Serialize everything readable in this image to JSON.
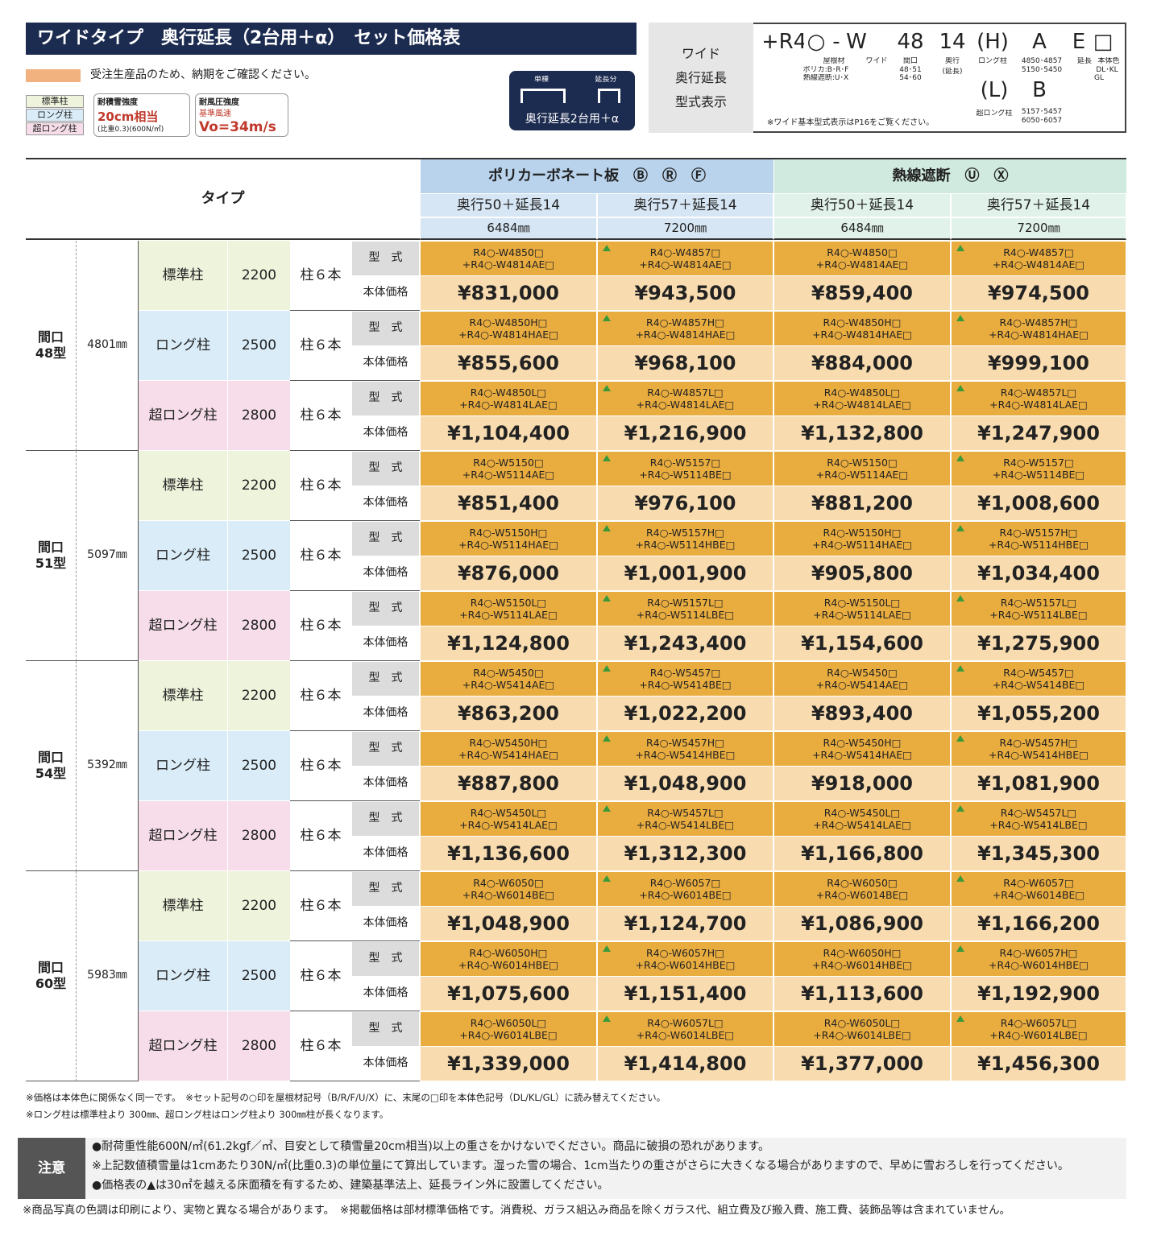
{
  "header": {
    "title": "ワイドタイプ　奥行延長（2台用＋α）　セット価格表",
    "order_note": "受注生産品のため、納期をご確認ください。",
    "legend": [
      "標準柱",
      "ロング柱",
      "超ロング柱"
    ],
    "snow": [
      "耐積雪強度",
      "20cm相当",
      "(比重0.3)(600N/㎡)"
    ],
    "wind": [
      "耐風圧強度",
      "基準風速",
      "Vo=34m/s"
    ],
    "icon": [
      "単棟",
      "延長分",
      "奥行延長2台用＋α"
    ]
  },
  "model_code": {
    "label": [
      "ワイド",
      "奥行延長",
      "型式表示"
    ],
    "big": [
      "+R4",
      "○",
      "-",
      "W",
      "48",
      "14",
      "(H)",
      "A",
      "E",
      "□",
      "(L)",
      "B"
    ],
    "small": [
      "屋根材",
      "ポリカ:B･R･F",
      "熱線遮断:U･X",
      "ワイド",
      "間口",
      "48･51",
      "54･60",
      "奥行",
      "(延長)",
      "ロング柱",
      "4850･4857",
      "5150･5450",
      "延長",
      "本体色",
      "DL･KL",
      "GL",
      "超ロング柱",
      "5157･5457",
      "6050･6057"
    ],
    "note": "※ワイド基本型式表示はP16をご覧ください。"
  },
  "table": {
    "type_header": "タイプ",
    "groups": [
      "ポリカーボネート板　Ⓑ　Ⓡ　Ⓕ",
      "熱線遮断　Ⓤ　Ⓧ"
    ],
    "columns": [
      {
        "depth": "奥行50＋延長14",
        "length": "6484㎜"
      },
      {
        "depth": "奥行57＋延長14",
        "length": "7200㎜"
      },
      {
        "depth": "奥行50＋延長14",
        "length": "6484㎜"
      },
      {
        "depth": "奥行57＋延長14",
        "length": "7200㎜"
      }
    ],
    "row_labels": [
      "型　式",
      "本体価格"
    ],
    "sections": [
      {
        "name": [
          "間口",
          "48型"
        ],
        "width": "4801㎜",
        "rows": [
          {
            "pillar": "標準柱",
            "height": "2200",
            "posts": "柱６本",
            "codes": [
              [
                "R4○-W4850□",
                "+R4○-W4814AE□"
              ],
              [
                "R4○-W4857□",
                "+R4○-W4814AE□"
              ],
              [
                "R4○-W4850□",
                "+R4○-W4814AE□"
              ],
              [
                "R4○-W4857□",
                "+R4○-W4814AE□"
              ]
            ],
            "prices": [
              "¥831,000",
              "¥943,500",
              "¥859,400",
              "¥974,500"
            ]
          },
          {
            "pillar": "ロング柱",
            "height": "2500",
            "posts": "柱６本",
            "codes": [
              [
                "R4○-W4850H□",
                "+R4○-W4814HAE□"
              ],
              [
                "R4○-W4857H□",
                "+R4○-W4814HAE□"
              ],
              [
                "R4○-W4850H□",
                "+R4○-W4814HAE□"
              ],
              [
                "R4○-W4857H□",
                "+R4○-W4814HAE□"
              ]
            ],
            "prices": [
              "¥855,600",
              "¥968,100",
              "¥884,000",
              "¥999,100"
            ]
          },
          {
            "pillar": "超ロング柱",
            "height": "2800",
            "posts": "柱６本",
            "codes": [
              [
                "R4○-W4850L□",
                "+R4○-W4814LAE□"
              ],
              [
                "R4○-W4857L□",
                "+R4○-W4814LAE□"
              ],
              [
                "R4○-W4850L□",
                "+R4○-W4814LAE□"
              ],
              [
                "R4○-W4857L□",
                "+R4○-W4814LAE□"
              ]
            ],
            "prices": [
              "¥1,104,400",
              "¥1,216,900",
              "¥1,132,800",
              "¥1,247,900"
            ]
          }
        ]
      },
      {
        "name": [
          "間口",
          "51型"
        ],
        "width": "5097㎜",
        "rows": [
          {
            "pillar": "標準柱",
            "height": "2200",
            "posts": "柱６本",
            "codes": [
              [
                "R4○-W5150□",
                "+R4○-W5114AE□"
              ],
              [
                "R4○-W5157□",
                "+R4○-W5114BE□"
              ],
              [
                "R4○-W5150□",
                "+R4○-W5114AE□"
              ],
              [
                "R4○-W5157□",
                "+R4○-W5114BE□"
              ]
            ],
            "prices": [
              "¥851,400",
              "¥976,100",
              "¥881,200",
              "¥1,008,600"
            ]
          },
          {
            "pillar": "ロング柱",
            "height": "2500",
            "posts": "柱６本",
            "codes": [
              [
                "R4○-W5150H□",
                "+R4○-W5114HAE□"
              ],
              [
                "R4○-W5157H□",
                "+R4○-W5114HBE□"
              ],
              [
                "R4○-W5150H□",
                "+R4○-W5114HAE□"
              ],
              [
                "R4○-W5157H□",
                "+R4○-W5114HBE□"
              ]
            ],
            "prices": [
              "¥876,000",
              "¥1,001,900",
              "¥905,800",
              "¥1,034,400"
            ]
          },
          {
            "pillar": "超ロング柱",
            "height": "2800",
            "posts": "柱６本",
            "codes": [
              [
                "R4○-W5150L□",
                "+R4○-W5114LAE□"
              ],
              [
                "R4○-W5157L□",
                "+R4○-W5114LBE□"
              ],
              [
                "R4○-W5150L□",
                "+R4○-W5114LAE□"
              ],
              [
                "R4○-W5157L□",
                "+R4○-W5114LBE□"
              ]
            ],
            "prices": [
              "¥1,124,800",
              "¥1,243,400",
              "¥1,154,600",
              "¥1,275,900"
            ]
          }
        ]
      },
      {
        "name": [
          "間口",
          "54型"
        ],
        "width": "5392㎜",
        "rows": [
          {
            "pillar": "標準柱",
            "height": "2200",
            "posts": "柱６本",
            "codes": [
              [
                "R4○-W5450□",
                "+R4○-W5414AE□"
              ],
              [
                "R4○-W5457□",
                "+R4○-W5414BE□"
              ],
              [
                "R4○-W5450□",
                "+R4○-W5414AE□"
              ],
              [
                "R4○-W5457□",
                "+R4○-W5414BE□"
              ]
            ],
            "prices": [
              "¥863,200",
              "¥1,022,200",
              "¥893,400",
              "¥1,055,200"
            ]
          },
          {
            "pillar": "ロング柱",
            "height": "2500",
            "posts": "柱６本",
            "codes": [
              [
                "R4○-W5450H□",
                "+R4○-W5414HAE□"
              ],
              [
                "R4○-W5457H□",
                "+R4○-W5414HBE□"
              ],
              [
                "R4○-W5450H□",
                "+R4○-W5414HAE□"
              ],
              [
                "R4○-W5457H□",
                "+R4○-W5414HBE□"
              ]
            ],
            "prices": [
              "¥887,800",
              "¥1,048,900",
              "¥918,000",
              "¥1,081,900"
            ]
          },
          {
            "pillar": "超ロング柱",
            "height": "2800",
            "posts": "柱６本",
            "codes": [
              [
                "R4○-W5450L□",
                "+R4○-W5414LAE□"
              ],
              [
                "R4○-W5457L□",
                "+R4○-W5414LBE□"
              ],
              [
                "R4○-W5450L□",
                "+R4○-W5414LAE□"
              ],
              [
                "R4○-W5457L□",
                "+R4○-W5414LBE□"
              ]
            ],
            "prices": [
              "¥1,136,600",
              "¥1,312,300",
              "¥1,166,800",
              "¥1,345,300"
            ]
          }
        ]
      },
      {
        "name": [
          "間口",
          "60型"
        ],
        "width": "5983㎜",
        "rows": [
          {
            "pillar": "標準柱",
            "height": "2200",
            "posts": "柱６本",
            "codes": [
              [
                "R4○-W6050□",
                "+R4○-W6014BE□"
              ],
              [
                "R4○-W6057□",
                "+R4○-W6014BE□"
              ],
              [
                "R4○-W6050□",
                "+R4○-W6014BE□"
              ],
              [
                "R4○-W6057□",
                "+R4○-W6014BE□"
              ]
            ],
            "prices": [
              "¥1,048,900",
              "¥1,124,700",
              "¥1,086,900",
              "¥1,166,200"
            ]
          },
          {
            "pillar": "ロング柱",
            "height": "2500",
            "posts": "柱６本",
            "codes": [
              [
                "R4○-W6050H□",
                "+R4○-W6014HBE□"
              ],
              [
                "R4○-W6057H□",
                "+R4○-W6014HBE□"
              ],
              [
                "R4○-W6050H□",
                "+R4○-W6014HBE□"
              ],
              [
                "R4○-W6057H□",
                "+R4○-W6014HBE□"
              ]
            ],
            "prices": [
              "¥1,075,600",
              "¥1,151,400",
              "¥1,113,600",
              "¥1,192,900"
            ]
          },
          {
            "pillar": "超ロング柱",
            "height": "2800",
            "posts": "柱６本",
            "codes": [
              [
                "R4○-W6050L□",
                "+R4○-W6014LBE□"
              ],
              [
                "R4○-W6057L□",
                "+R4○-W6014LBE□"
              ],
              [
                "R4○-W6050L□",
                "+R4○-W6014LBE□"
              ],
              [
                "R4○-W6057L□",
                "+R4○-W6014LBE□"
              ]
            ],
            "prices": [
              "¥1,339,000",
              "¥1,414,800",
              "¥1,377,000",
              "¥1,456,300"
            ]
          }
        ]
      }
    ]
  },
  "notes": [
    "※価格は本体色に関係なく同一です。　※セット記号の○印を屋根材記号（B/R/F/U/X）に、末尾の□印を本体色記号（DL/KL/GL）に読み替えてください。",
    "※ロング柱は標準柱より 300㎜、超ロング柱はロング柱より 300㎜柱が長くなります。"
  ],
  "caution": {
    "label": "注意",
    "lines": [
      "●耐荷重性能600N/㎡(61.2kgf／㎡、目安として積雪量20cm相当)以上の重さをかけないでください。商品に破損の恐れがあります。",
      "※上記数値積雪量は1cmあたり30N/㎡(比重0.3)の単位量にて算出しています。湿った雪の場合、1cm当たりの重さがさらに大きくなる場合がありますので、早めに雪おろしを行ってください。",
      "●価格表の▲は30㎡を越える床面積を有するため、建築基準法上、延長ライン外に設置してください。"
    ]
  },
  "footer": "※商品写真の色調は印刷により、実物と異なる場合があります。　※掲載価格は部材標準価格です。消費税、ガラス組込み商品を除くガラス代、組立費及び搬入費、施工費、装飾品等は含まれていません。"
}
